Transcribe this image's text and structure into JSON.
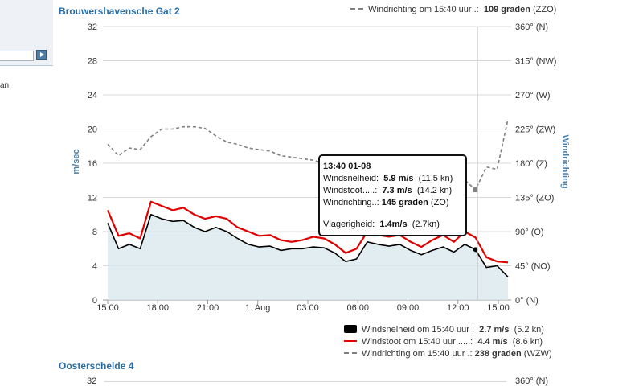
{
  "sidebar": {
    "text_fragment": "an"
  },
  "station1": {
    "title": "Brouwershavensche Gat 2",
    "y_left_label": "m/sec",
    "y_right_label": "Windrichting",
    "y_left_ticks": [
      "32",
      "28",
      "24",
      "20",
      "16",
      "12",
      "8",
      "4",
      "0"
    ],
    "y_right_ticks": [
      "360° (N)",
      "315° (NW)",
      "270° (W)",
      "225° (ZW)",
      "180° (Z)",
      "135° (ZO)",
      "90° (O)",
      "45° (NO)",
      "0° (N)"
    ],
    "x_ticks": [
      "15:00",
      "18:00",
      "21:00",
      "1. Aug",
      "03:00",
      "06:00",
      "09:00",
      "12:00",
      "15:00"
    ],
    "top_partial_legend": {
      "label": "Windrichting om 15:40 uur .:",
      "value": "109 graden",
      "unit": "(ZZO)"
    }
  },
  "tooltip": {
    "time": "13:40 01-08",
    "speed_label": "Windsnelheid:",
    "speed_value": "5.9 m/s",
    "speed_kn": "(11.5 kn)",
    "gust_label": "Windstoot.....:",
    "gust_value": "7.3 m/s",
    "gust_kn": "(14.2 kn)",
    "dir_label": "Windrichting..:",
    "dir_value": "145 graden",
    "dir_name": "(ZO)",
    "vlag_label": "Vlagerigheid:",
    "vlag_value": "1.4m/s",
    "vlag_kn": "(2.7kn)"
  },
  "legend": {
    "speed": {
      "label": "Windsnelheid om 15:40 uur :",
      "value": "2.7 m/s",
      "extra": "(5.2 kn)",
      "color": "#000000"
    },
    "gust": {
      "label": "Windstoot om 15:40 uur .....:",
      "value": "4.4 m/s",
      "extra": "(8.6 kn)",
      "color": "#e00000"
    },
    "direction": {
      "label": "Windrichting om 15:40 uur .:",
      "value": "238 graden",
      "extra": "(WZW)",
      "color": "#808080"
    }
  },
  "station2": {
    "title": "Oosterschelde 4",
    "y_left_tick_top": "32",
    "y_right_tick_top": "360° (N)"
  },
  "chart_data": {
    "type": "line",
    "title": "Brouwershavensche Gat 2",
    "x": [
      "15:00",
      "15:40",
      "16:20",
      "17:00",
      "17:40",
      "18:20",
      "19:00",
      "19:40",
      "20:20",
      "21:00",
      "21:40",
      "22:20",
      "23:00",
      "23:40",
      "00:20",
      "01:00",
      "01:40",
      "02:20",
      "03:00",
      "03:40",
      "04:20",
      "05:00",
      "05:40",
      "06:20",
      "07:00",
      "07:40",
      "08:20",
      "09:00",
      "09:40",
      "10:20",
      "11:00",
      "11:40",
      "12:20",
      "13:00",
      "13:40",
      "14:20",
      "15:00",
      "15:40"
    ],
    "series": [
      {
        "name": "Windsnelheid",
        "unit": "m/s",
        "axis": "left",
        "values": [
          9.0,
          6.0,
          6.5,
          6.0,
          10.0,
          9.5,
          9.2,
          9.3,
          8.5,
          8.0,
          8.5,
          8.0,
          7.2,
          6.5,
          6.2,
          6.3,
          5.8,
          6.0,
          6.0,
          6.2,
          6.1,
          5.5,
          4.5,
          4.8,
          6.8,
          6.5,
          6.3,
          6.5,
          5.8,
          5.3,
          5.8,
          6.2,
          5.6,
          6.5,
          5.9,
          3.8,
          4.0,
          2.7
        ]
      },
      {
        "name": "Windstoot",
        "unit": "m/s",
        "axis": "left",
        "values": [
          10.5,
          7.5,
          7.8,
          7.2,
          11.5,
          11.0,
          10.5,
          10.8,
          10.0,
          9.5,
          9.8,
          9.5,
          8.5,
          8.0,
          7.5,
          7.6,
          7.0,
          6.8,
          7.0,
          7.4,
          7.2,
          6.5,
          5.5,
          6.0,
          8.0,
          7.6,
          7.4,
          7.6,
          6.8,
          6.2,
          7.0,
          7.6,
          6.8,
          8.0,
          7.3,
          5.0,
          4.5,
          4.4
        ]
      },
      {
        "name": "Windrichting",
        "unit": "graden",
        "axis": "right",
        "values": [
          205,
          190,
          200,
          198,
          215,
          225,
          225,
          228,
          228,
          226,
          216,
          208,
          205,
          200,
          198,
          196,
          190,
          188,
          186,
          184,
          180,
          178,
          176,
          175,
          174,
          172,
          172,
          172,
          170,
          170,
          168,
          166,
          164,
          158,
          145,
          175,
          172,
          238
        ]
      }
    ],
    "ylim_left": [
      0,
      32
    ],
    "ylim_right": [
      0,
      360
    ],
    "grid": true,
    "legend_position": "bottom-right"
  }
}
